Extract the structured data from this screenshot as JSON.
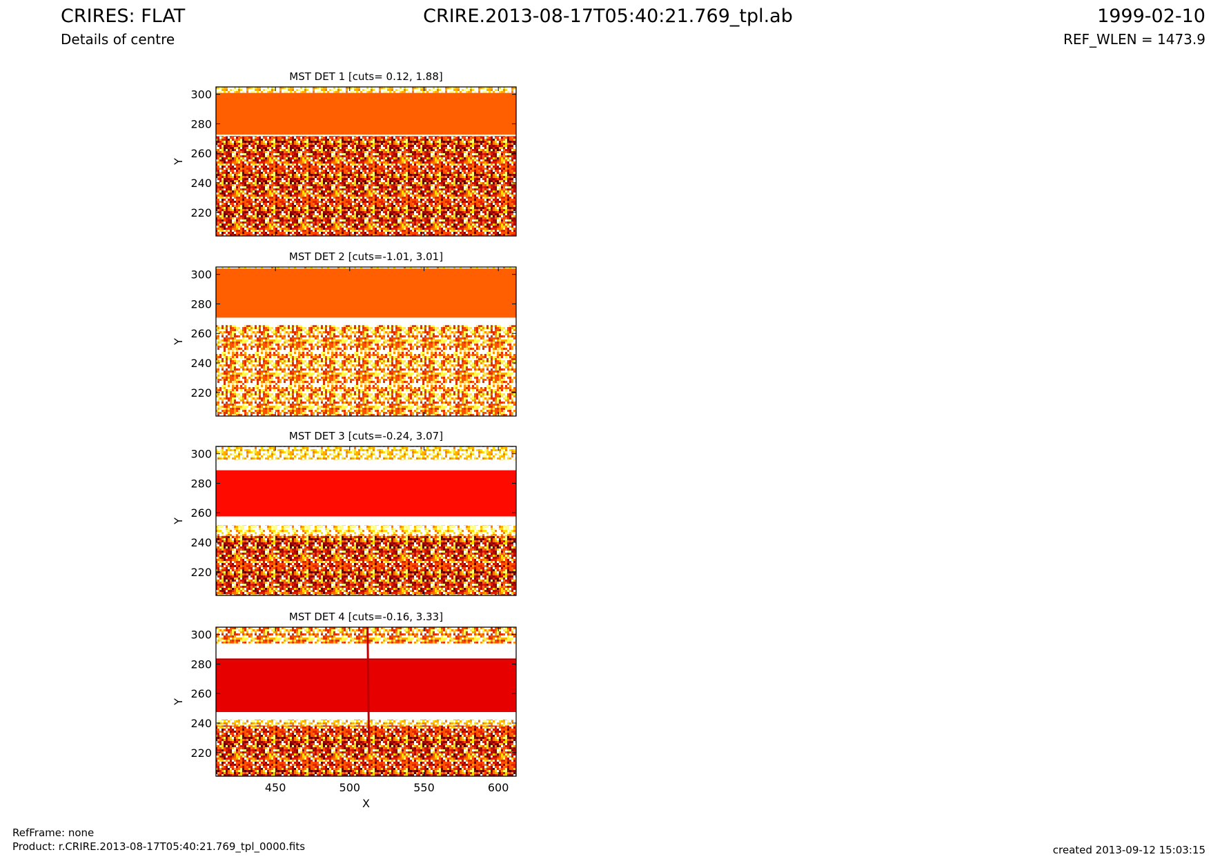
{
  "header": {
    "title": "CRIRES: FLAT",
    "subtitle": "Details of centre",
    "file": "CRIRE.2013-08-17T05:40:21.769_tpl.ab",
    "date": "1999-02-10",
    "ref_wlen": "REF_WLEN = 1473.9"
  },
  "footer": {
    "ref_frame": "RefFrame: none",
    "product": "Product: r.CRIRE.2013-08-17T05:40:21.769_tpl_0000.fits",
    "created": "created 2013-09-12 15:03:15"
  },
  "chart_data": [
    {
      "type": "heatmap",
      "colormap": "hot",
      "title": "MST DET 1 [cuts= 0.12, 1.88]",
      "ylabel": "Y",
      "xlim": [
        410,
        612
      ],
      "ylim": [
        204,
        305
      ],
      "xticks": [
        450,
        500,
        550,
        600
      ],
      "yticks": [
        220,
        240,
        260,
        280,
        300
      ]
    },
    {
      "type": "heatmap",
      "colormap": "hot",
      "title": "MST DET 2 [cuts=-1.01, 3.01]",
      "ylabel": "Y",
      "xlim": [
        410,
        612
      ],
      "ylim": [
        204,
        305
      ],
      "xticks": [
        450,
        500,
        550,
        600
      ],
      "yticks": [
        220,
        240,
        260,
        280,
        300
      ]
    },
    {
      "type": "heatmap",
      "colormap": "hot",
      "title": "MST DET 3 [cuts=-0.24, 3.07]",
      "ylabel": "Y",
      "xlim": [
        410,
        612
      ],
      "ylim": [
        204,
        305
      ],
      "xticks": [
        450,
        500,
        550,
        600
      ],
      "yticks": [
        220,
        240,
        260,
        280,
        300
      ]
    },
    {
      "type": "heatmap",
      "colormap": "hot",
      "title": "MST DET 4 [cuts=-0.16, 3.33]",
      "xlabel": "X",
      "ylabel": "Y",
      "xlim": [
        410,
        612
      ],
      "ylim": [
        204,
        305
      ],
      "xticks": [
        450,
        500,
        550,
        600
      ],
      "yticks": [
        220,
        240,
        260,
        280,
        300
      ]
    }
  ]
}
